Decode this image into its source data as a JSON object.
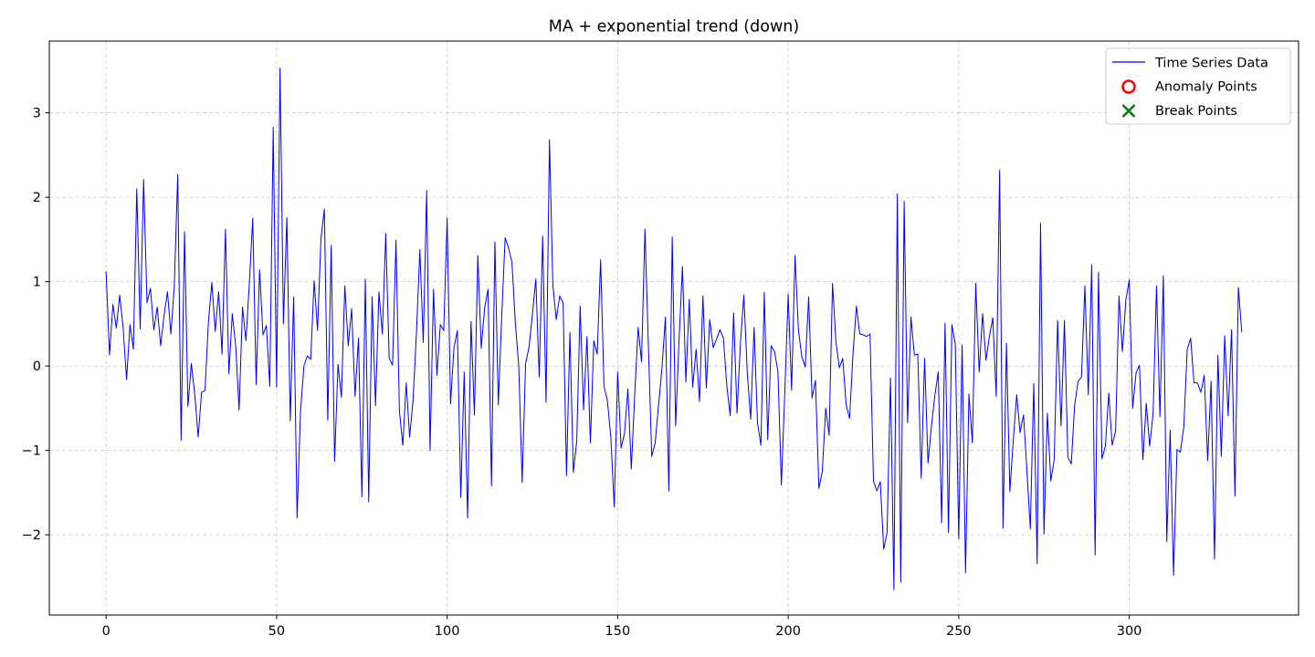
{
  "chart_data": {
    "type": "line",
    "title": "MA + exponential trend (down)",
    "xlabel": "",
    "ylabel": "",
    "xlim": [
      -16.65,
      349.65
    ],
    "ylim": [
      -2.95,
      3.85
    ],
    "x_ticks": [
      0,
      50,
      100,
      150,
      200,
      250,
      300
    ],
    "y_ticks": [
      -2,
      -1,
      0,
      1,
      2,
      3
    ],
    "grid": true,
    "legend_position": "top-right",
    "legend": [
      {
        "label": "Time Series Data",
        "marker": "line",
        "color": "#0000ff"
      },
      {
        "label": "Anomaly Points",
        "marker": "circle",
        "color": "#ff0000"
      },
      {
        "label": "Break Points",
        "marker": "x",
        "color": "#008000"
      }
    ],
    "series": [
      {
        "name": "Time Series Data",
        "color": "#0000ff",
        "x_start": 0,
        "x_step": 1,
        "values": [
          1.12,
          0.13,
          0.73,
          0.45,
          0.84,
          0.45,
          -0.16,
          0.49,
          0.2,
          2.1,
          0.44,
          2.21,
          0.75,
          0.92,
          0.43,
          0.7,
          0.24,
          0.6,
          0.88,
          0.38,
          0.95,
          2.27,
          -0.88,
          1.59,
          -0.48,
          0.03,
          -0.34,
          -0.84,
          -0.31,
          -0.29,
          0.52,
          0.99,
          0.41,
          0.88,
          0.14,
          1.62,
          -0.09,
          0.62,
          0.24,
          -0.52,
          0.7,
          0.3,
          0.98,
          1.75,
          -0.22,
          1.14,
          0.37,
          0.48,
          -0.24,
          2.83,
          -0.25,
          3.53,
          0.5,
          1.76,
          -0.65,
          0.82,
          -1.8,
          -0.54,
          0.0,
          0.12,
          0.08,
          1.01,
          0.42,
          1.51,
          1.86,
          -0.64,
          1.43,
          -1.13,
          0.02,
          -0.37,
          0.95,
          0.24,
          0.68,
          -0.36,
          0.33,
          -1.55,
          1.03,
          -1.61,
          0.82,
          -0.47,
          0.88,
          0.38,
          1.57,
          0.09,
          0.01,
          1.49,
          -0.53,
          -0.94,
          -0.2,
          -0.84,
          -0.41,
          0.39,
          1.38,
          0.28,
          2.08,
          -1.0,
          0.91,
          -0.11,
          0.49,
          0.42,
          1.75,
          -0.45,
          0.22,
          0.42,
          -1.56,
          -0.07,
          -1.8,
          0.53,
          -0.58,
          1.31,
          0.21,
          0.69,
          0.91,
          -1.42,
          1.47,
          -0.46,
          0.58,
          1.52,
          1.4,
          1.23,
          0.51,
          0.0,
          -1.38,
          0.03,
          0.22,
          0.61,
          1.03,
          -0.13,
          1.54,
          -0.43,
          2.68,
          0.96,
          0.55,
          0.83,
          0.75,
          -1.3,
          0.4,
          -1.26,
          -0.89,
          0.71,
          -0.52,
          0.35,
          -0.91,
          0.3,
          0.14,
          1.26,
          -0.24,
          -0.41,
          -0.85,
          -1.67,
          -0.07,
          -0.97,
          -0.8,
          -0.27,
          -1.22,
          -0.34,
          0.46,
          0.05,
          1.62,
          0.25,
          -1.07,
          -0.91,
          -0.46,
          -0.02,
          0.58,
          -1.48,
          1.53,
          -0.71,
          0.31,
          1.18,
          -0.19,
          0.79,
          -0.25,
          0.2,
          -0.42,
          0.83,
          -0.26,
          0.55,
          0.22,
          0.32,
          0.43,
          0.33,
          -0.23,
          -0.59,
          0.63,
          -0.56,
          0.28,
          0.84,
          -0.07,
          -0.63,
          0.46,
          -0.67,
          -0.94,
          0.87,
          -0.87,
          0.24,
          0.17,
          -0.07,
          -1.41,
          -0.32,
          0.85,
          -0.29,
          1.31,
          0.43,
          0.11,
          -0.01,
          0.82,
          -0.38,
          -0.17,
          -1.45,
          -1.25,
          -0.5,
          -0.82,
          0.98,
          0.29,
          -0.02,
          0.09,
          -0.46,
          -0.62,
          0.14,
          0.71,
          0.38,
          0.37,
          0.35,
          0.38,
          -1.36,
          -1.48,
          -1.37,
          -2.17,
          -1.97,
          -0.14,
          -2.65,
          2.04,
          -2.56,
          1.95,
          -0.67,
          0.58,
          0.13,
          0.14,
          -1.33,
          0.09,
          -1.15,
          -0.71,
          -0.35,
          -0.07,
          -1.86,
          0.51,
          -1.97,
          0.49,
          0.26,
          -2.05,
          0.25,
          -2.45,
          -0.33,
          -0.91,
          0.98,
          -0.07,
          0.62,
          0.07,
          0.35,
          0.57,
          -0.36,
          2.32,
          -1.92,
          0.27,
          -1.49,
          -0.88,
          -0.34,
          -0.79,
          -0.58,
          -1.24,
          -1.93,
          -0.21,
          -2.34,
          1.69,
          -1.99,
          -0.56,
          -1.36,
          -1.11,
          0.54,
          -0.71,
          0.54,
          -1.08,
          -1.16,
          -0.46,
          -0.18,
          -0.13,
          0.95,
          -0.34,
          1.2,
          -2.24,
          1.11,
          -1.1,
          -0.95,
          -0.32,
          -0.94,
          -0.77,
          0.83,
          0.17,
          0.78,
          1.02,
          -0.5,
          -0.08,
          0.01,
          -1.11,
          -0.44,
          -0.95,
          -0.56,
          0.95,
          -0.6,
          1.07,
          -2.08,
          -0.76,
          -2.48,
          -0.99,
          -1.02,
          -0.72,
          0.2,
          0.33,
          -0.2,
          -0.2,
          -0.31,
          -0.11,
          -1.12,
          -0.18,
          -2.29,
          0.13,
          -1.07,
          0.36,
          -0.59,
          0.43,
          -1.54,
          0.93,
          0.4
        ]
      }
    ],
    "anomaly_points": [],
    "break_points": []
  }
}
